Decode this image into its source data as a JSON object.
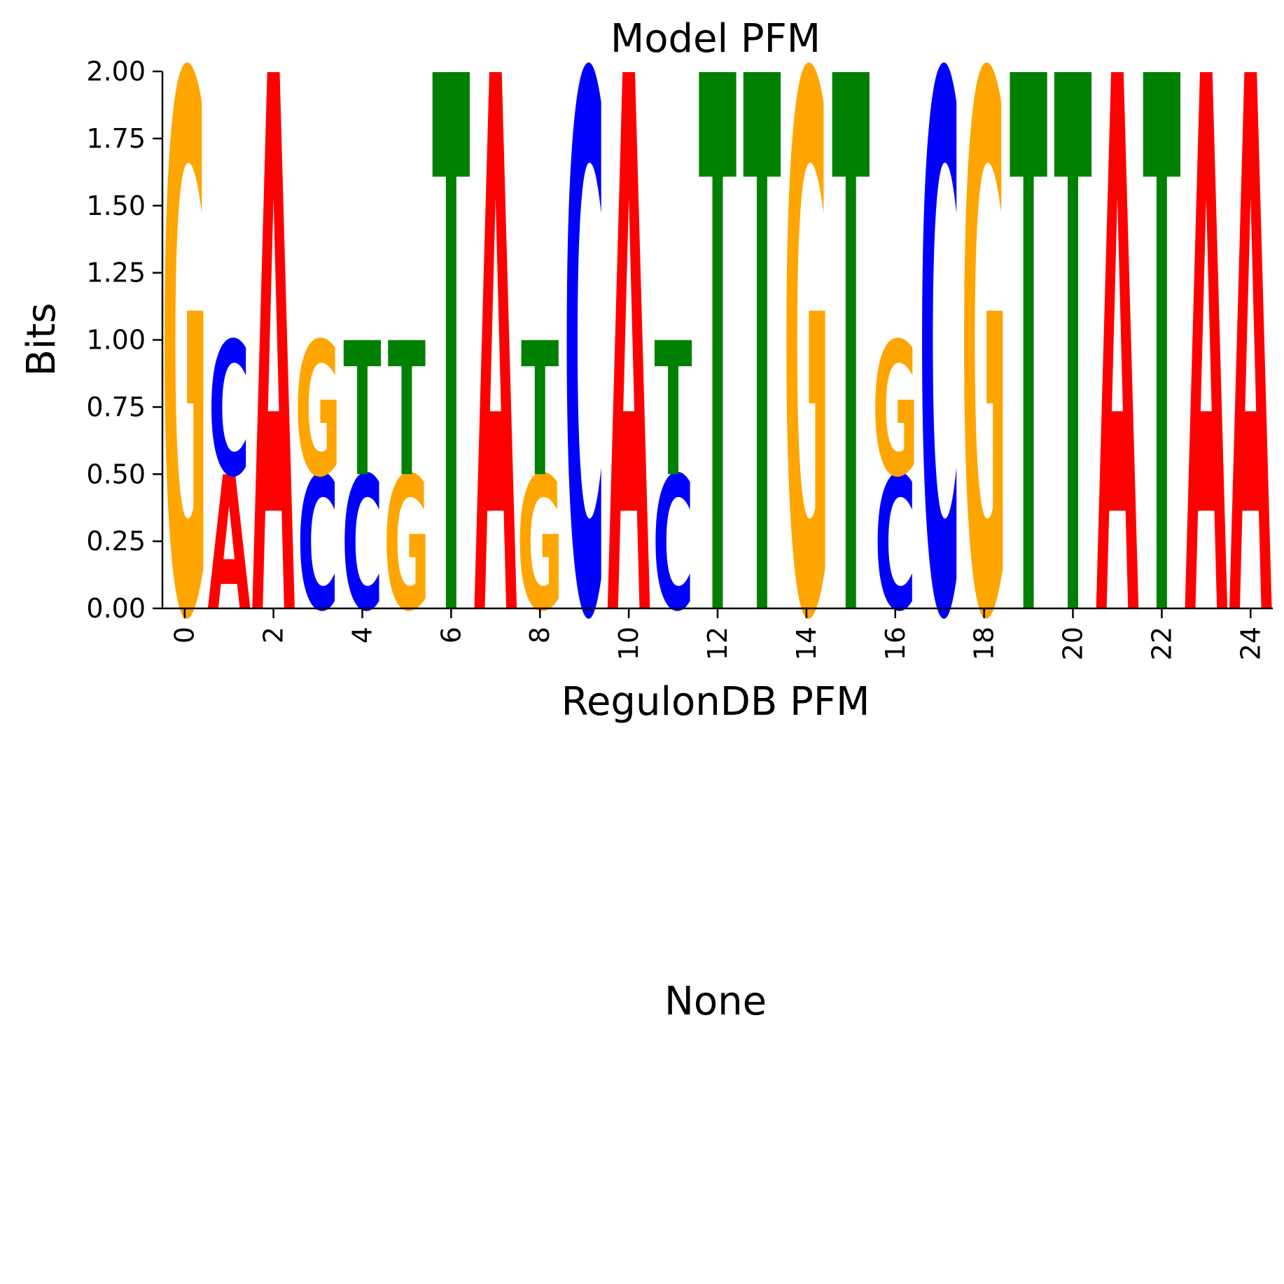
{
  "chart_data": [
    {
      "type": "sequence-logo",
      "title": "Model PFM",
      "xlabel": "RegulonDB PFM",
      "ylabel": "Bits",
      "ylim": [
        0,
        2
      ],
      "xlim": [
        -0.5,
        24.5
      ],
      "ytick_labels": [
        "0.00",
        "0.25",
        "0.50",
        "0.75",
        "1.00",
        "1.25",
        "1.50",
        "1.75",
        "2.00"
      ],
      "xtick_labels": [
        "0",
        "2",
        "4",
        "6",
        "8",
        "10",
        "12",
        "14",
        "16",
        "18",
        "20",
        "22",
        "24"
      ],
      "colors": {
        "A": "#ff0000",
        "C": "#0000ff",
        "G": "#ffa500",
        "T": "#008000"
      },
      "positions": [
        {
          "pos": 0,
          "stack": [
            {
              "base": "G",
              "bits": 2.0
            }
          ]
        },
        {
          "pos": 1,
          "stack": [
            {
              "base": "A",
              "bits": 0.5
            },
            {
              "base": "C",
              "bits": 0.5
            }
          ]
        },
        {
          "pos": 2,
          "stack": [
            {
              "base": "A",
              "bits": 2.0
            }
          ]
        },
        {
          "pos": 3,
          "stack": [
            {
              "base": "C",
              "bits": 0.5
            },
            {
              "base": "G",
              "bits": 0.5
            }
          ]
        },
        {
          "pos": 4,
          "stack": [
            {
              "base": "C",
              "bits": 0.5
            },
            {
              "base": "T",
              "bits": 0.5
            }
          ]
        },
        {
          "pos": 5,
          "stack": [
            {
              "base": "G",
              "bits": 0.5
            },
            {
              "base": "T",
              "bits": 0.5
            }
          ]
        },
        {
          "pos": 6,
          "stack": [
            {
              "base": "T",
              "bits": 2.0
            }
          ]
        },
        {
          "pos": 7,
          "stack": [
            {
              "base": "A",
              "bits": 2.0
            }
          ]
        },
        {
          "pos": 8,
          "stack": [
            {
              "base": "G",
              "bits": 0.5
            },
            {
              "base": "T",
              "bits": 0.5
            }
          ]
        },
        {
          "pos": 9,
          "stack": [
            {
              "base": "C",
              "bits": 2.0
            }
          ]
        },
        {
          "pos": 10,
          "stack": [
            {
              "base": "A",
              "bits": 2.0
            }
          ]
        },
        {
          "pos": 11,
          "stack": [
            {
              "base": "C",
              "bits": 0.5
            },
            {
              "base": "T",
              "bits": 0.5
            }
          ]
        },
        {
          "pos": 12,
          "stack": [
            {
              "base": "T",
              "bits": 2.0
            }
          ]
        },
        {
          "pos": 13,
          "stack": [
            {
              "base": "T",
              "bits": 2.0
            }
          ]
        },
        {
          "pos": 14,
          "stack": [
            {
              "base": "G",
              "bits": 2.0
            }
          ]
        },
        {
          "pos": 15,
          "stack": [
            {
              "base": "T",
              "bits": 2.0
            }
          ]
        },
        {
          "pos": 16,
          "stack": [
            {
              "base": "C",
              "bits": 0.5
            },
            {
              "base": "G",
              "bits": 0.5
            }
          ]
        },
        {
          "pos": 17,
          "stack": [
            {
              "base": "C",
              "bits": 2.0
            }
          ]
        },
        {
          "pos": 18,
          "stack": [
            {
              "base": "G",
              "bits": 2.0
            }
          ]
        },
        {
          "pos": 19,
          "stack": [
            {
              "base": "T",
              "bits": 2.0
            }
          ]
        },
        {
          "pos": 20,
          "stack": [
            {
              "base": "T",
              "bits": 2.0
            }
          ]
        },
        {
          "pos": 21,
          "stack": [
            {
              "base": "A",
              "bits": 2.0
            }
          ]
        },
        {
          "pos": 22,
          "stack": [
            {
              "base": "T",
              "bits": 2.0
            }
          ]
        },
        {
          "pos": 23,
          "stack": [
            {
              "base": "A",
              "bits": 2.0
            }
          ]
        },
        {
          "pos": 24,
          "stack": [
            {
              "base": "A",
              "bits": 2.0
            }
          ]
        }
      ]
    },
    {
      "type": "empty",
      "title": "None"
    }
  ]
}
